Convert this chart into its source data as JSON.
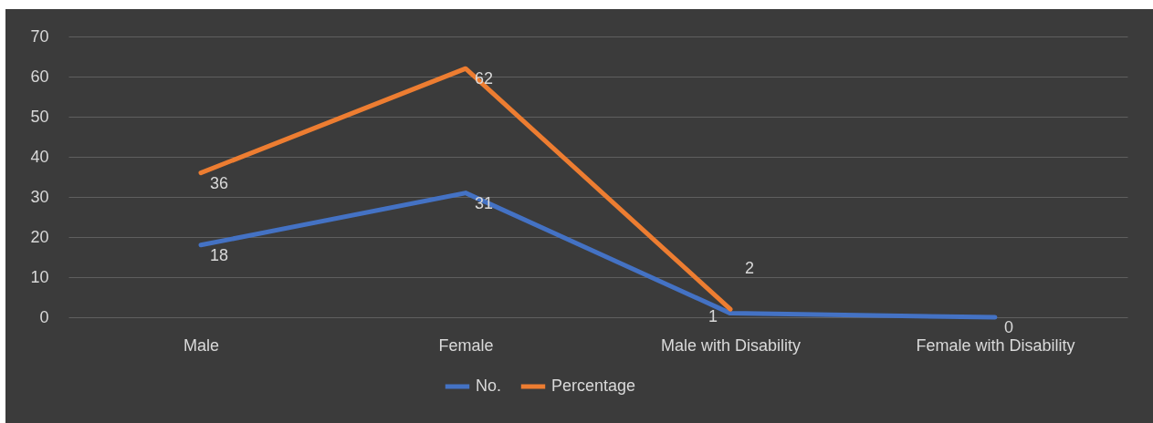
{
  "chart_data": {
    "type": "line",
    "categories": [
      "Male",
      "Female",
      "Male with Disability",
      "Female with Disability"
    ],
    "series": [
      {
        "name": "No.",
        "color": "#4472c4",
        "values": [
          18,
          31,
          1,
          0
        ]
      },
      {
        "name": "Percentage",
        "color": "#ed7d31",
        "values": [
          36,
          62,
          2,
          null
        ]
      }
    ],
    "ylim": [
      0,
      70
    ],
    "yticks": [
      0,
      10,
      20,
      30,
      40,
      50,
      60,
      70
    ],
    "grid": "y",
    "legend": "bottom",
    "data_labels": true,
    "marker": "none",
    "line_style": "solid"
  }
}
